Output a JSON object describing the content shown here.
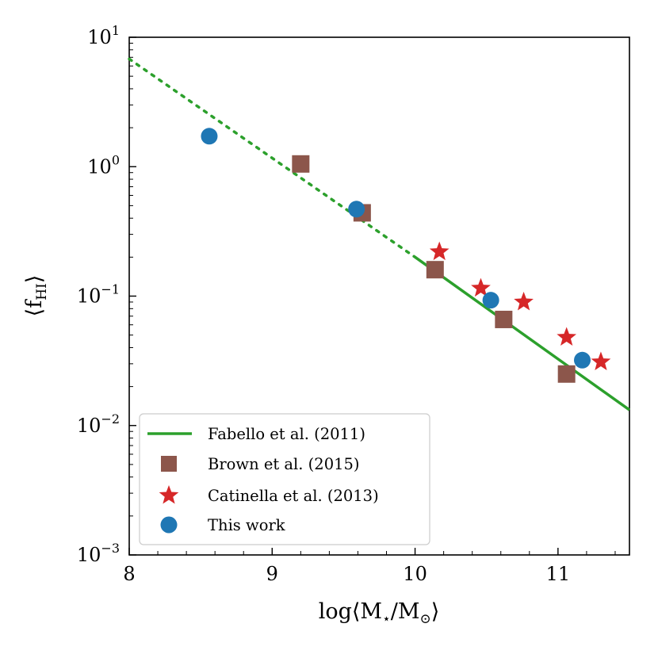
{
  "chart_data": {
    "type": "scatter",
    "title": "",
    "xlabel": {
      "main": "log⟨M",
      "sub1": "⋆",
      "mid": "/M",
      "sub2": "⊙",
      "end": "⟩"
    },
    "ylabel": {
      "main": "⟨f",
      "sub": "HI",
      "end": "⟩"
    },
    "xlim": [
      8,
      11.5
    ],
    "ylim": [
      0.001,
      10
    ],
    "yscale": "log",
    "grid": false,
    "xticks": [
      {
        "value": 8,
        "label": "8"
      },
      {
        "value": 9,
        "label": "9"
      },
      {
        "value": 10,
        "label": "10"
      },
      {
        "value": 11,
        "label": "11"
      }
    ],
    "yticks": [
      {
        "value": 0.001,
        "base": "10",
        "exp": "−3"
      },
      {
        "value": 0.01,
        "base": "10",
        "exp": "−2"
      },
      {
        "value": 0.1,
        "base": "10",
        "exp": "−1"
      },
      {
        "value": 1,
        "base": "10",
        "exp": "0"
      },
      {
        "value": 10,
        "base": "10",
        "exp": "1"
      }
    ],
    "legend_position": "lower-left",
    "series": [
      {
        "name": "Fabello et al. (2011)",
        "kind": "line",
        "color": "#2ca02c",
        "x": [
          8.0,
          10.0,
          11.5
        ],
        "y": [
          6.8,
          0.2,
          0.0132
        ],
        "dotted_below_x": 10.0
      },
      {
        "name": "Brown et al. (2015)",
        "kind": "square",
        "color": "#8c564b",
        "x": [
          9.2,
          9.63,
          10.14,
          10.62,
          11.06
        ],
        "y": [
          1.05,
          0.44,
          0.16,
          0.066,
          0.025
        ]
      },
      {
        "name": "Catinella et al. (2013)",
        "kind": "star",
        "color": "#d62728",
        "x": [
          10.17,
          10.46,
          10.76,
          11.06,
          11.3
        ],
        "y": [
          0.22,
          0.115,
          0.09,
          0.048,
          0.031
        ]
      },
      {
        "name": "This work",
        "kind": "circle",
        "color": "#1f77b4",
        "x": [
          8.56,
          9.59,
          10.53,
          11.17
        ],
        "y": [
          1.72,
          0.47,
          0.093,
          0.032
        ]
      }
    ]
  }
}
